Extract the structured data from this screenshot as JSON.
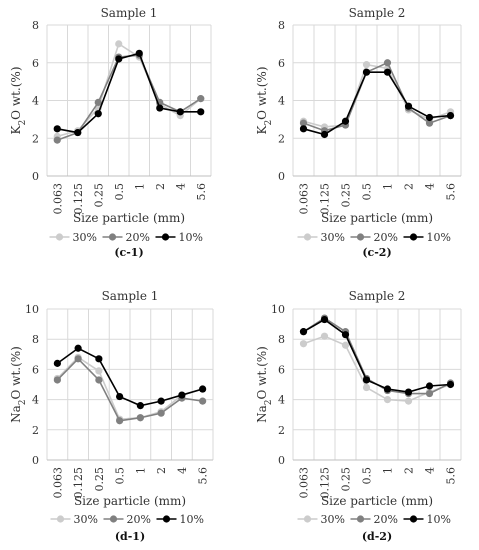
{
  "chart_data": [
    {
      "id": "c-1",
      "type": "line",
      "title": "Sample 1",
      "ylabel_parts": [
        "K",
        "2",
        "O wt.(%)"
      ],
      "xlabel": "Size particle (mm)",
      "caption": "(c-1)",
      "categories": [
        "0.063",
        "0.125",
        "0.25",
        "0.5",
        "1",
        "2",
        "4",
        "5.6"
      ],
      "ylim": [
        0,
        8
      ],
      "yticks": [
        "0",
        "2",
        "4",
        "6",
        "8"
      ],
      "grid": true,
      "legend_position": "bottom",
      "series": [
        {
          "name": "30%",
          "color": "#cccccc",
          "values": [
            2.1,
            2.4,
            3.6,
            7.0,
            6.3,
            3.8,
            3.2,
            4.1
          ]
        },
        {
          "name": "20%",
          "color": "#808080",
          "values": [
            1.9,
            2.3,
            3.9,
            6.3,
            6.4,
            3.9,
            3.4,
            4.1
          ]
        },
        {
          "name": "10%",
          "color": "#000000",
          "values": [
            2.5,
            2.3,
            3.3,
            6.2,
            6.5,
            3.6,
            3.4,
            3.4
          ]
        }
      ]
    },
    {
      "id": "c-2",
      "type": "line",
      "title": "Sample 2",
      "ylabel_parts": [
        "K",
        "2",
        "O wt.(%)"
      ],
      "xlabel": "Size particle (mm)",
      "caption": "(c-2)",
      "categories": [
        "0.063",
        "0.125",
        "0.25",
        "0.5",
        "1",
        "2",
        "4",
        "5.6"
      ],
      "ylim": [
        0,
        8
      ],
      "yticks": [
        "0",
        "2",
        "4",
        "6",
        "8"
      ],
      "grid": true,
      "legend_position": "bottom",
      "series": [
        {
          "name": "30%",
          "color": "#cccccc",
          "values": [
            2.9,
            2.6,
            2.7,
            5.9,
            5.7,
            3.5,
            3.0,
            3.4
          ]
        },
        {
          "name": "20%",
          "color": "#808080",
          "values": [
            2.8,
            2.4,
            2.7,
            5.5,
            6.0,
            3.6,
            2.8,
            3.2
          ]
        },
        {
          "name": "10%",
          "color": "#000000",
          "values": [
            2.5,
            2.2,
            2.9,
            5.5,
            5.5,
            3.7,
            3.1,
            3.2
          ]
        }
      ]
    },
    {
      "id": "d-1",
      "type": "line",
      "title": "Sample 1",
      "ylabel_parts": [
        "Na",
        "2",
        "O wt.(%)"
      ],
      "xlabel": "Size particle (mm)",
      "caption": "(d-1)",
      "categories": [
        "0.063",
        "0.125",
        "0.25",
        "0.5",
        "1",
        "2",
        "4",
        "5.6"
      ],
      "ylim": [
        0,
        10
      ],
      "yticks": [
        "0",
        "2",
        "4",
        "6",
        "8",
        "10"
      ],
      "grid": true,
      "legend_position": "bottom",
      "series": [
        {
          "name": "30%",
          "color": "#cccccc",
          "values": [
            5.4,
            6.8,
            5.9,
            2.7,
            2.8,
            3.2,
            4.3,
            4.7
          ]
        },
        {
          "name": "20%",
          "color": "#808080",
          "values": [
            5.3,
            6.7,
            5.3,
            2.6,
            2.8,
            3.1,
            4.1,
            3.9
          ]
        },
        {
          "name": "10%",
          "color": "#000000",
          "values": [
            6.4,
            7.4,
            6.7,
            4.2,
            3.6,
            3.9,
            4.3,
            4.7
          ]
        }
      ]
    },
    {
      "id": "d-2",
      "type": "line",
      "title": "Sample 2",
      "ylabel_parts": [
        "Na",
        "2",
        "O wt.(%)"
      ],
      "xlabel": "Size particle (mm)",
      "caption": "(d-2)",
      "categories": [
        "0.063",
        "0.125",
        "0.25",
        "0.5",
        "1",
        "2",
        "4",
        "5.6"
      ],
      "ylim": [
        0,
        10
      ],
      "yticks": [
        "0",
        "2",
        "4",
        "6",
        "8",
        "10"
      ],
      "grid": true,
      "legend_position": "bottom",
      "series": [
        {
          "name": "30%",
          "color": "#cccccc",
          "values": [
            7.7,
            8.2,
            7.6,
            4.8,
            4.0,
            3.9,
            4.5,
            5.0
          ]
        },
        {
          "name": "20%",
          "color": "#808080",
          "values": [
            8.5,
            9.4,
            8.5,
            5.4,
            4.6,
            4.4,
            4.4,
            5.1
          ]
        },
        {
          "name": "10%",
          "color": "#000000",
          "values": [
            8.5,
            9.3,
            8.3,
            5.3,
            4.7,
            4.5,
            4.9,
            5.0
          ]
        }
      ]
    }
  ]
}
